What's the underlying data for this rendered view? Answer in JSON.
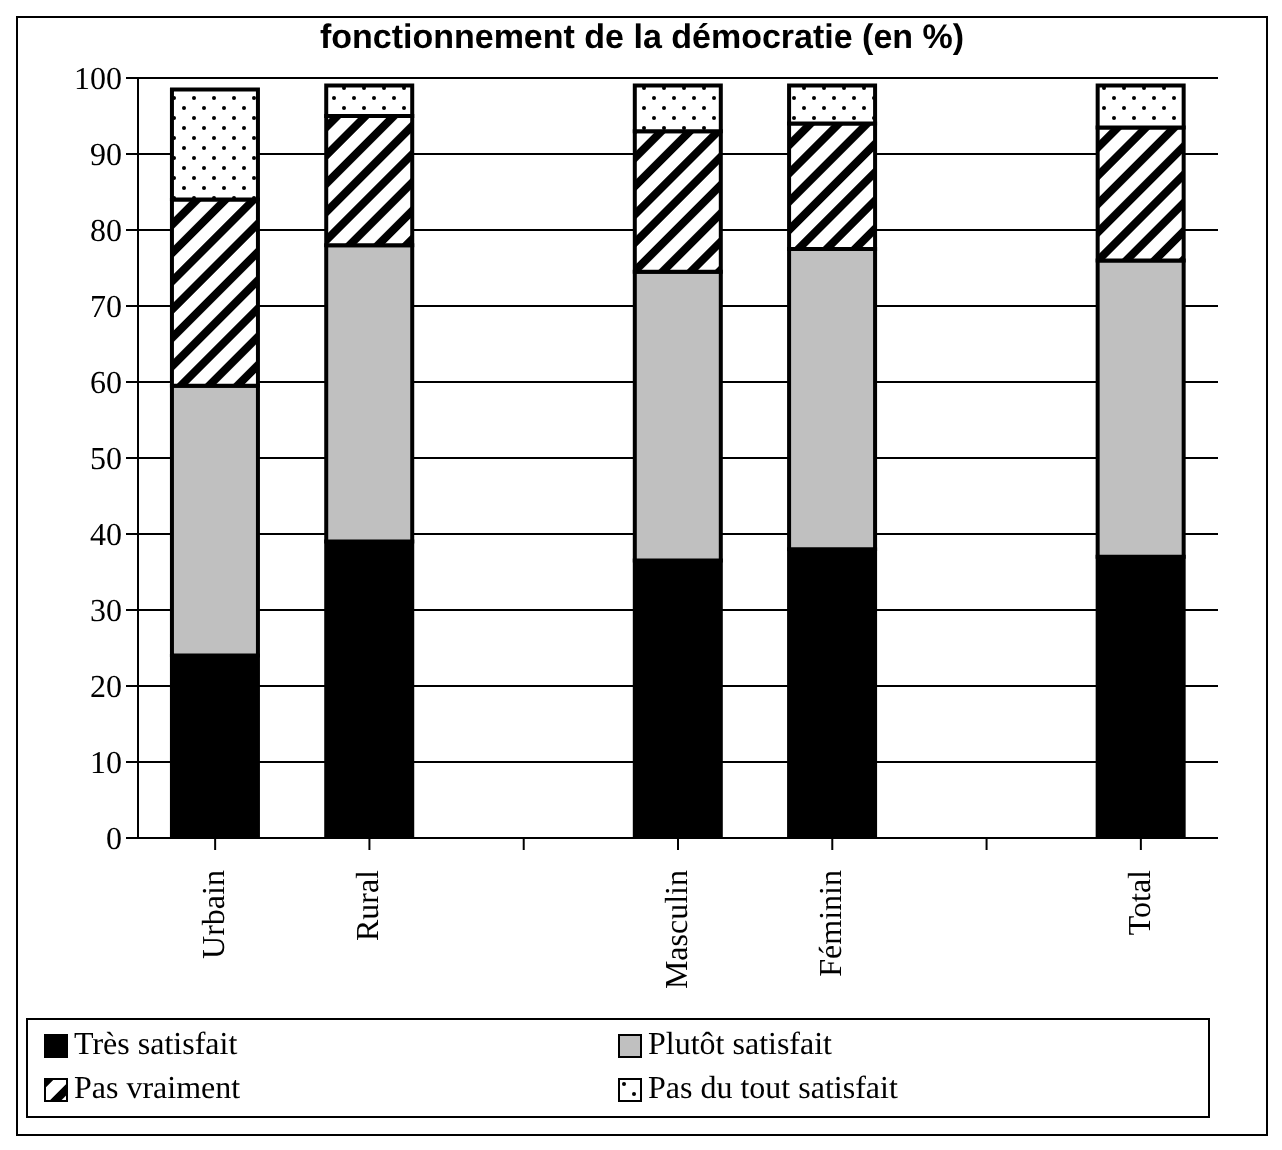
{
  "chart_data": {
    "type": "bar",
    "title": "fonctionnement de la démocratie (en %)",
    "categories": [
      "Urbain",
      "Rural",
      null,
      "Masculin",
      "Féminin",
      null,
      "Total"
    ],
    "stacked": true,
    "series": [
      {
        "name": "Très satisfait",
        "color": "#000000",
        "values": [
          24,
          39,
          null,
          36.5,
          38,
          null,
          37
        ]
      },
      {
        "name": "Plutôt satisfait",
        "color": "#c0c0c0",
        "values": [
          35.5,
          39,
          null,
          38,
          39.5,
          null,
          39
        ]
      },
      {
        "name": "Pas vraiment",
        "color": "#000000",
        "values": [
          24.5,
          17,
          null,
          18.5,
          16.5,
          null,
          17.5
        ]
      },
      {
        "name": "Pas du tout satisfait",
        "color": "#000000",
        "values": [
          14.5,
          4,
          null,
          6,
          5,
          null,
          5.5
        ]
      }
    ],
    "ylim": [
      0,
      100
    ],
    "yticks": [
      0,
      10,
      20,
      30,
      40,
      50,
      60,
      70,
      80,
      90,
      100
    ],
    "grid": "y",
    "legend": "bottom"
  }
}
